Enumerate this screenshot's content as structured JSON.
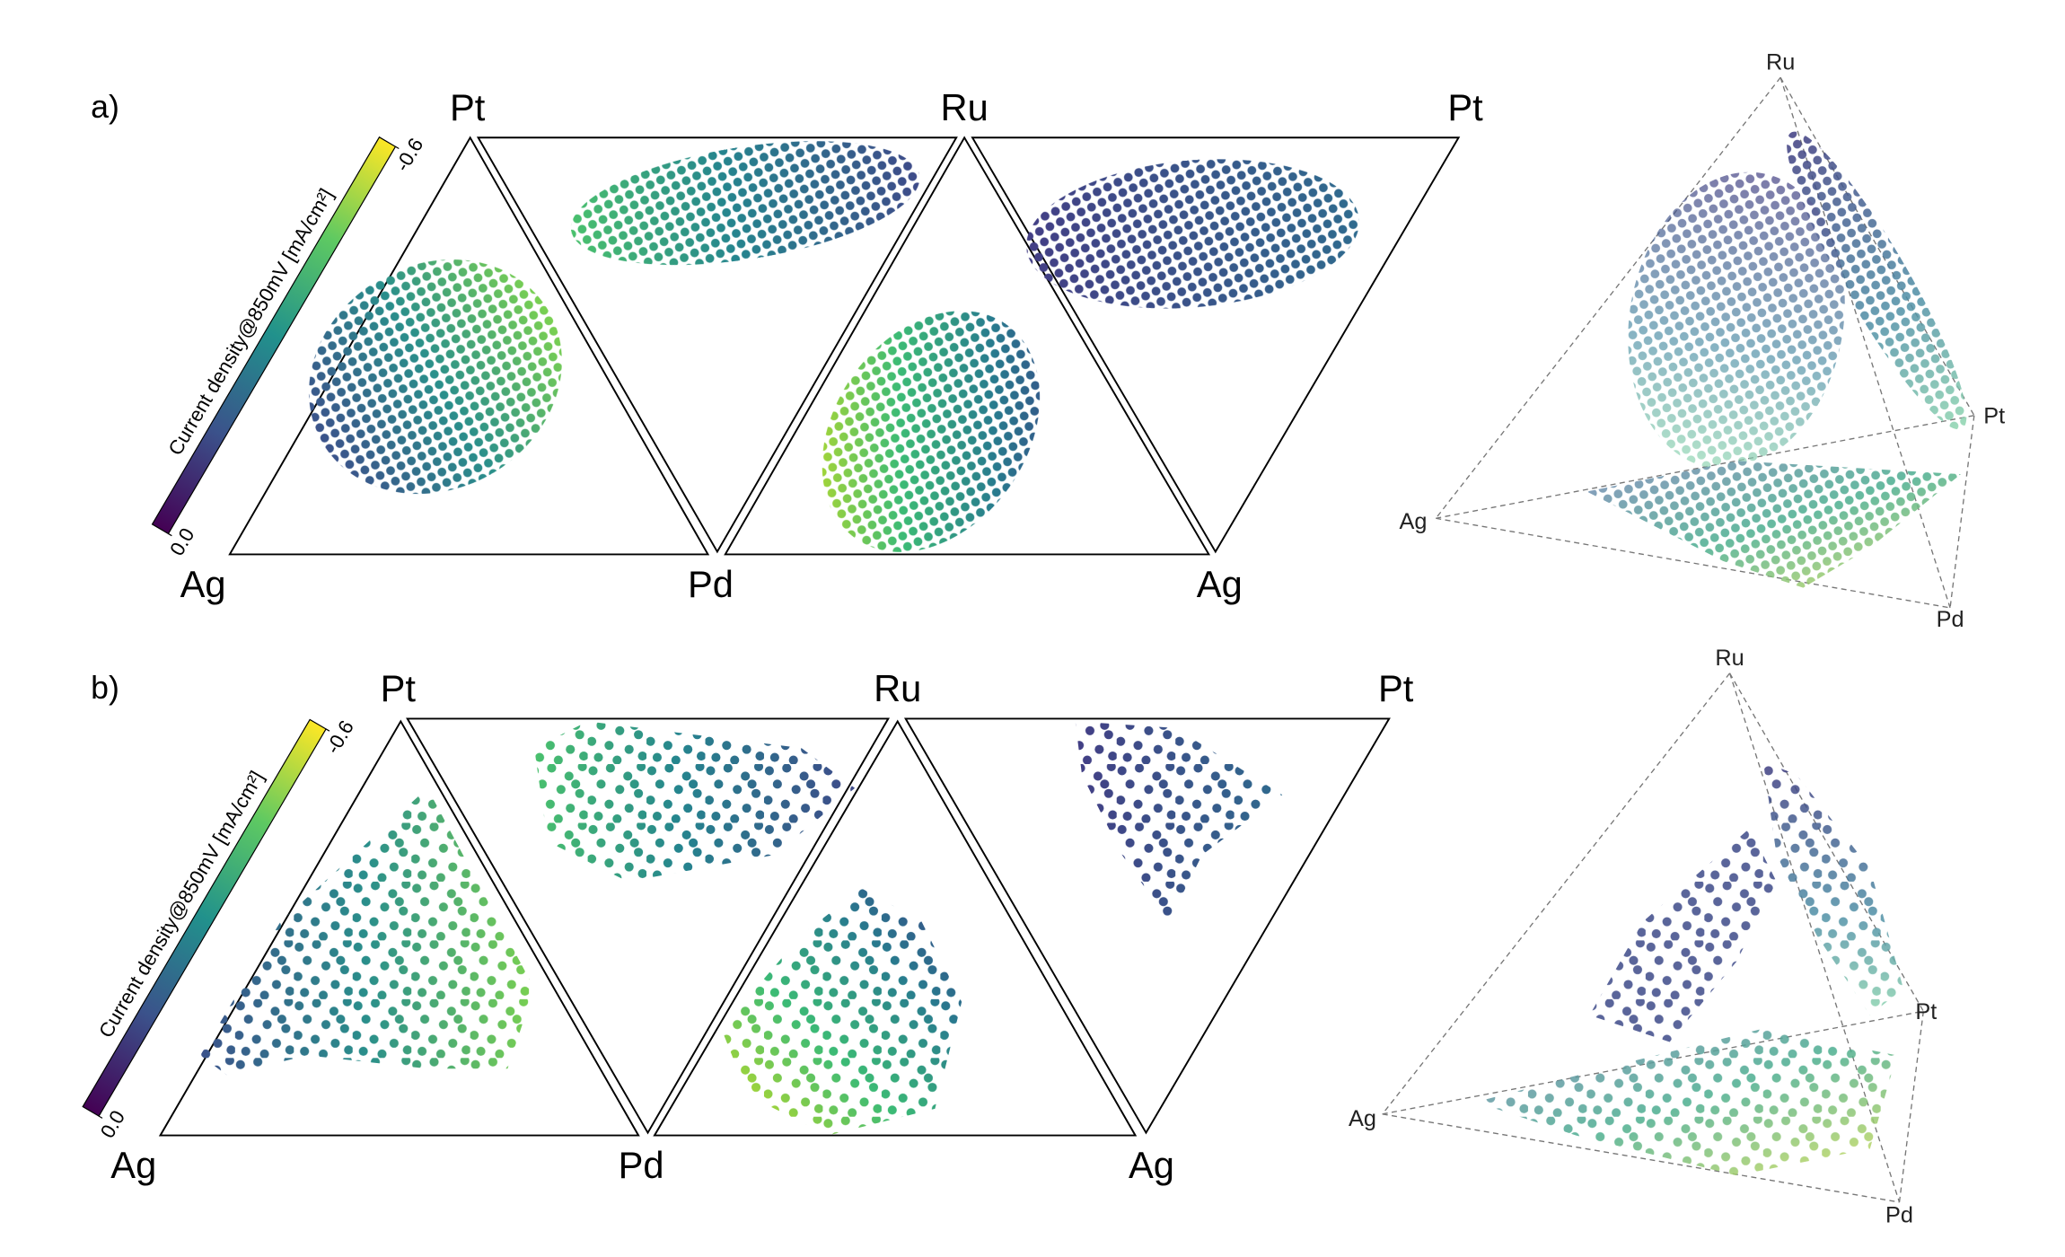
{
  "panels": [
    {
      "label": "a)",
      "colorbar": {
        "label": "Current density@850mV [mA/cm²]",
        "lim": [
          0,
          -0.6
        ],
        "ticks": [
          {
            "value": 0,
            "label": "0.0"
          },
          -0.6
        ],
        "colormap": "viridis"
      },
      "net": {
        "top": [
          "Pt",
          "Ru",
          "Pt"
        ],
        "bottom": [
          "Ag",
          "Pd",
          "Ag"
        ]
      },
      "tetrahedron": [
        "Ru",
        "Pt",
        "Ag",
        "Pd"
      ]
    },
    {
      "label": "b)",
      "colorbar": {
        "label": "Current density@850mV [mA/cm²]",
        "lim": [
          0,
          -0.6
        ],
        "ticks": [
          {
            "value": 0,
            "label": "0.0"
          },
          -0.6
        ],
        "colormap": "viridis"
      },
      "net": {
        "top": [
          "Pt",
          "Ru",
          "Pt"
        ],
        "bottom": [
          "Ag",
          "Pd",
          "Ag"
        ]
      },
      "tetrahedron": [
        "Ru",
        "Pt",
        "Ag",
        "Pd"
      ]
    }
  ]
}
